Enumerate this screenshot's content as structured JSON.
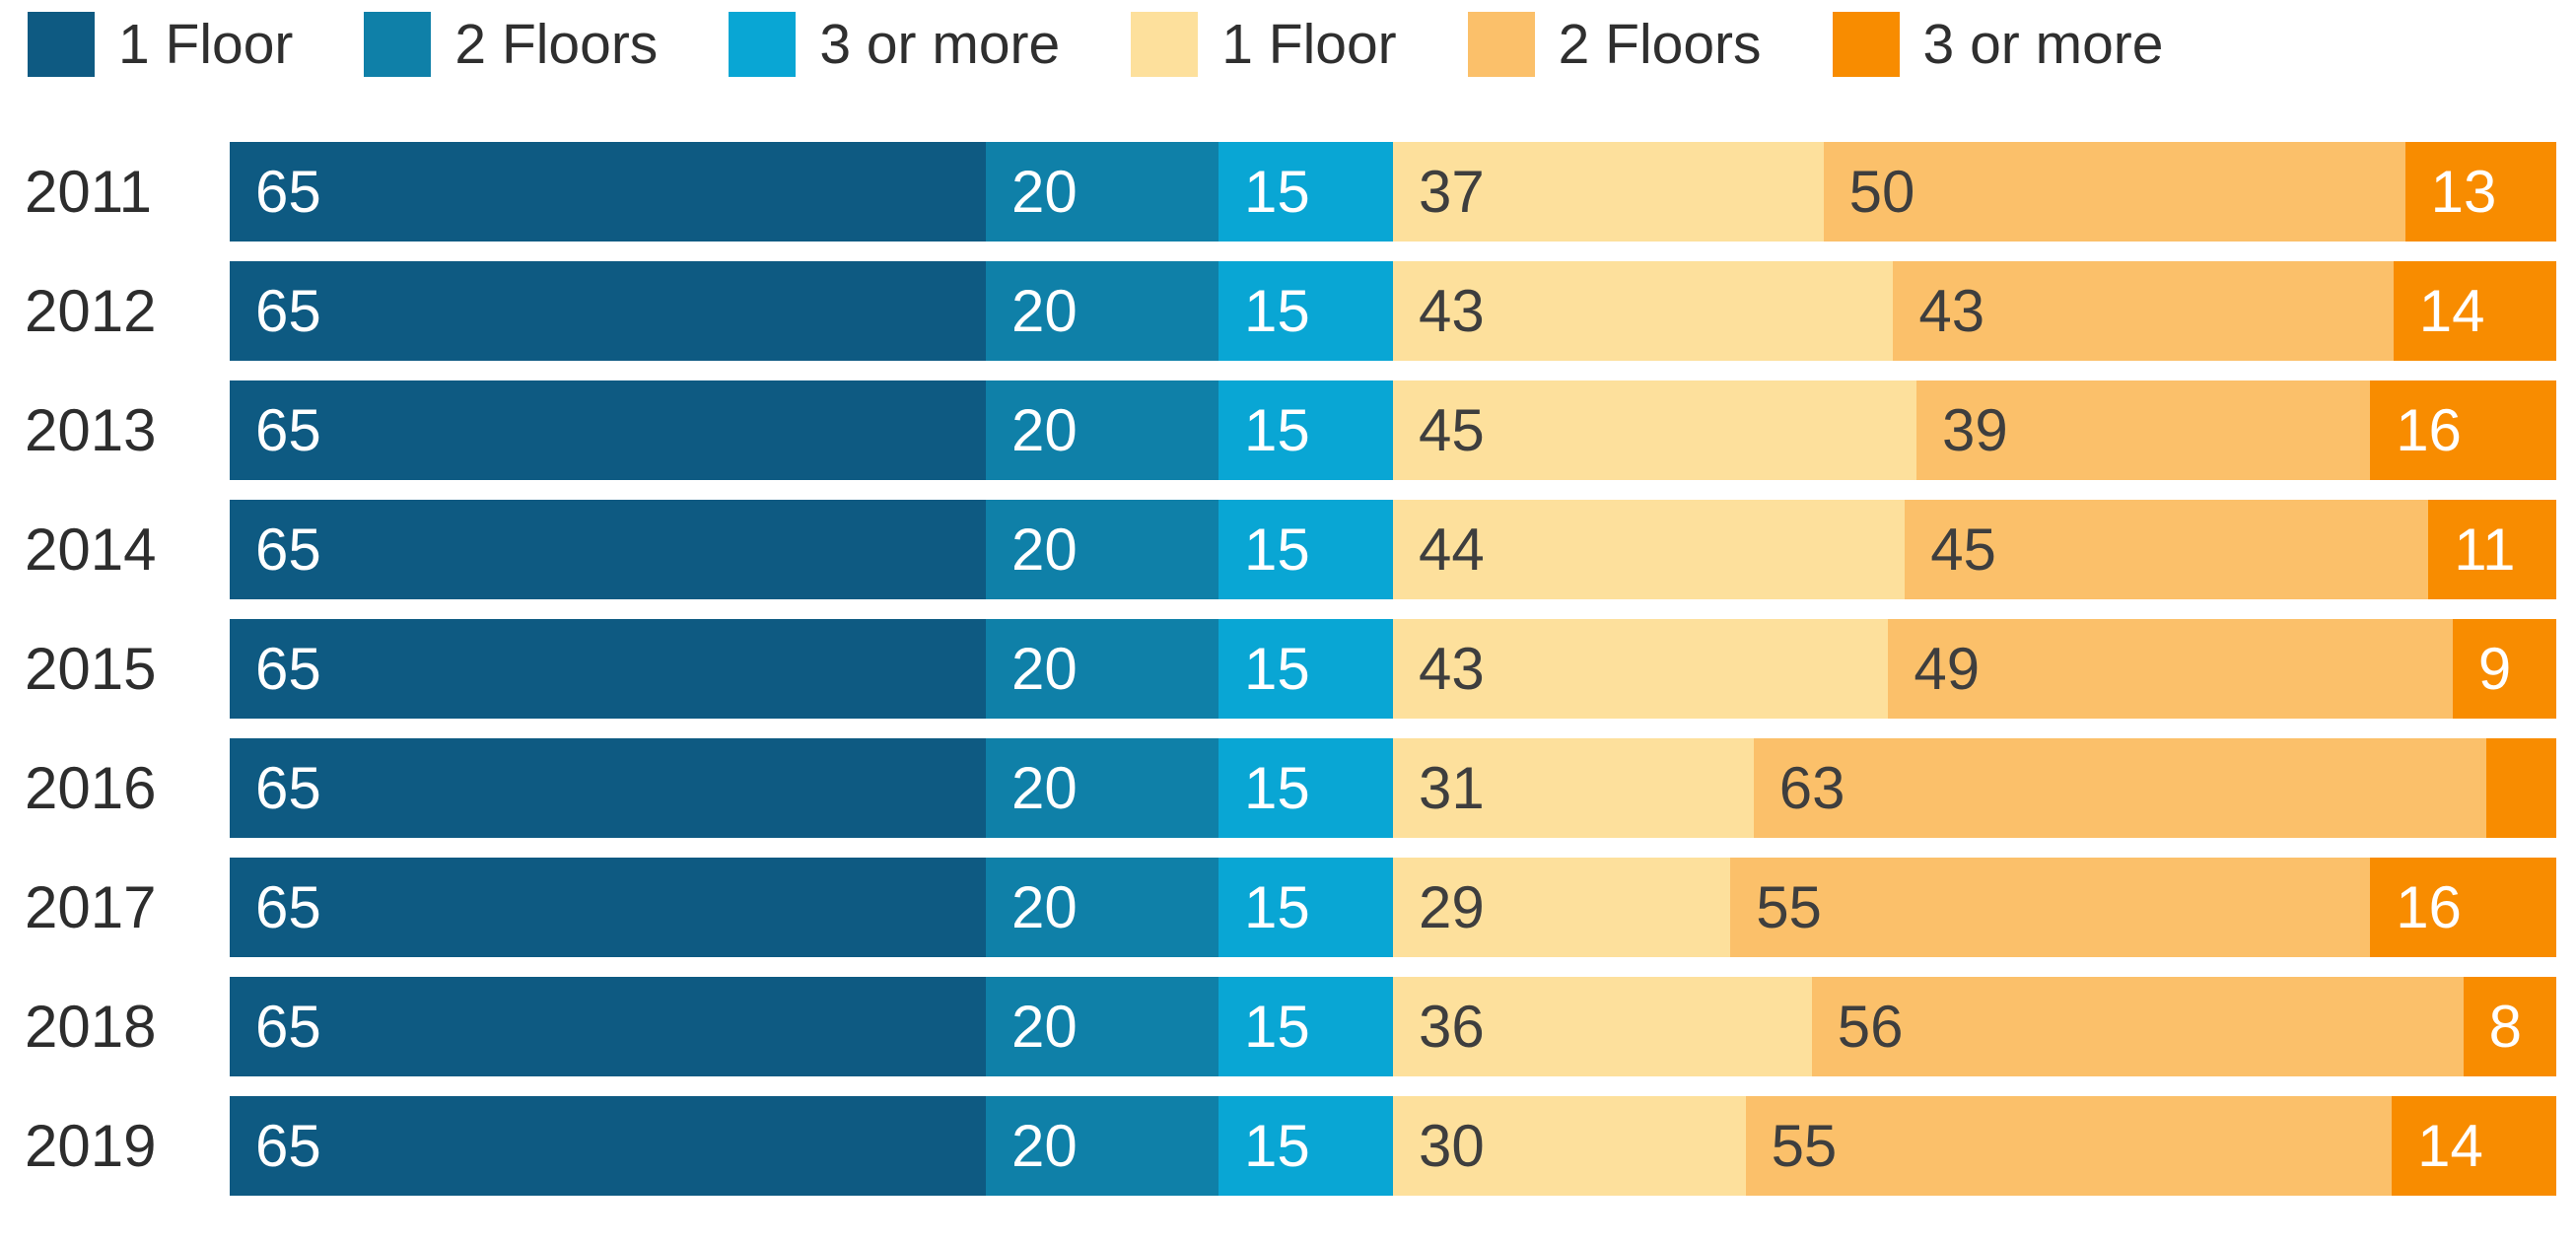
{
  "legend": {
    "position": "top",
    "items": [
      {
        "label": "1 Floor",
        "color": "#0E5A82"
      },
      {
        "label": "2 Floors",
        "color": "#0F80A8"
      },
      {
        "label": "3 or more",
        "color": "#09A6D4"
      },
      {
        "label": "1 Floor",
        "color": "#FDE09C"
      },
      {
        "label": "2 Floors",
        "color": "#FBC06A"
      },
      {
        "label": "3 or more",
        "color": "#F88C00"
      }
    ]
  },
  "chart_data": {
    "type": "bar",
    "orientation": "horizontal",
    "stacked": true,
    "grid": false,
    "axes_shown": false,
    "legend_position": "top",
    "categories": [
      "2011",
      "2012",
      "2013",
      "2014",
      "2015",
      "2016",
      "2017",
      "2018",
      "2019"
    ],
    "category_text_color": "#2d2d2d",
    "groups": [
      {
        "name": "blue-floors",
        "share_of_width": 0.5,
        "series": [
          {
            "name": "1 Floor",
            "color": "#0E5A82",
            "label_color": "#FFFFFF",
            "values": [
              65,
              65,
              65,
              65,
              65,
              65,
              65,
              65,
              65
            ],
            "value_labels": [
              "65",
              "65",
              "65",
              "65",
              "65",
              "65",
              "65",
              "65",
              "65"
            ]
          },
          {
            "name": "2 Floors",
            "color": "#0F80A8",
            "label_color": "#FFFFFF",
            "values": [
              20,
              20,
              20,
              20,
              20,
              20,
              20,
              20,
              20
            ],
            "value_labels": [
              "20",
              "20",
              "20",
              "20",
              "20",
              "20",
              "20",
              "20",
              "20"
            ]
          },
          {
            "name": "3 or more",
            "color": "#09A6D4",
            "label_color": "#FFFFFF",
            "values": [
              15,
              15,
              15,
              15,
              15,
              15,
              15,
              15,
              15
            ],
            "value_labels": [
              "15",
              "15",
              "15",
              "15",
              "15",
              "15",
              "15",
              "15",
              "15"
            ]
          }
        ]
      },
      {
        "name": "orange-floors",
        "share_of_width": 0.5,
        "series": [
          {
            "name": "1 Floor",
            "color": "#FDE09C",
            "label_color": "#3E3E3E",
            "values": [
              37,
              43,
              45,
              44,
              43,
              31,
              29,
              36,
              30
            ],
            "value_labels": [
              "37",
              "43",
              "45",
              "44",
              "43",
              "31",
              "29",
              "36",
              "30"
            ]
          },
          {
            "name": "2 Floors",
            "color": "#FBC06A",
            "label_color": "#3E3E3E",
            "values": [
              50,
              43,
              39,
              45,
              49,
              63,
              55,
              56,
              55
            ],
            "value_labels": [
              "50",
              "43",
              "39",
              "45",
              "49",
              "63",
              "55",
              "56",
              "55"
            ]
          },
          {
            "name": "3 or more",
            "color": "#F88C00",
            "label_color": "#FFFFFF",
            "values": [
              13,
              14,
              16,
              11,
              9,
              6,
              16,
              8,
              14
            ],
            "value_labels": [
              "13",
              "14",
              "16",
              "11",
              "9",
              "",
              "16",
              "8",
              "14"
            ]
          }
        ]
      }
    ]
  }
}
